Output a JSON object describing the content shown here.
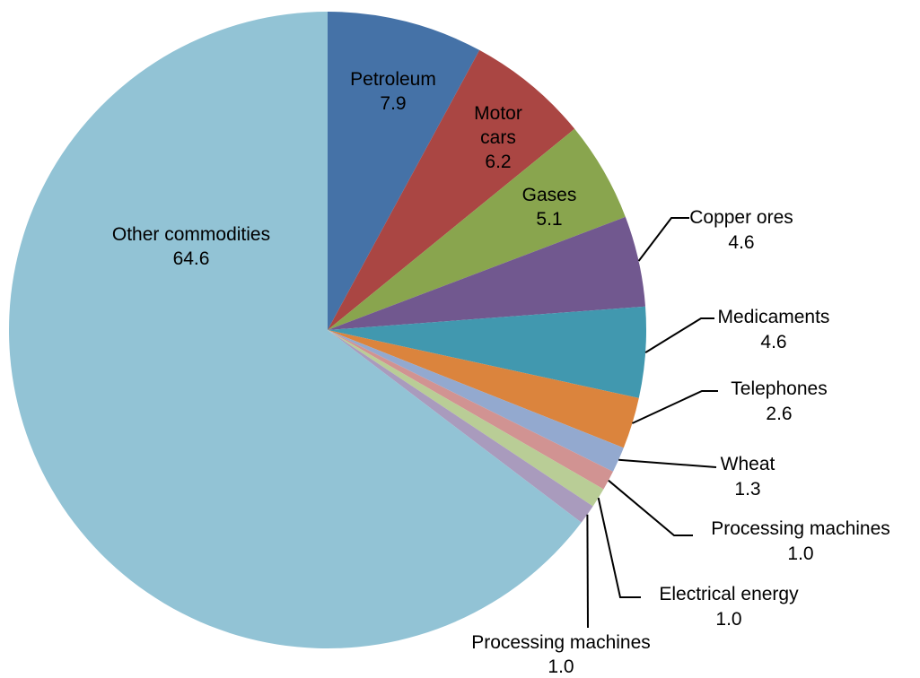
{
  "chart_data": {
    "type": "pie",
    "title": "",
    "start_angle_deg": 0,
    "direction": "clockwise",
    "slices": [
      {
        "label": "Petroleum",
        "value": 7.9,
        "value_label": "7.9",
        "color": "#4572A7"
      },
      {
        "label": "Motor cars",
        "value": 6.2,
        "value_label": "6.2",
        "color": "#AA4643"
      },
      {
        "label": "Gases",
        "value": 5.1,
        "value_label": "5.1",
        "color": "#89A54E"
      },
      {
        "label": "Copper ores",
        "value": 4.6,
        "value_label": "4.6",
        "color": "#71588F"
      },
      {
        "label": "Medicaments",
        "value": 4.6,
        "value_label": "4.6",
        "color": "#4198AF"
      },
      {
        "label": "Telephones",
        "value": 2.6,
        "value_label": "2.6",
        "color": "#DB843D"
      },
      {
        "label": "Wheat",
        "value": 1.3,
        "value_label": "1.3",
        "color": "#93A9CF"
      },
      {
        "label": "Processing machines",
        "value": 1.0,
        "value_label": "1.0",
        "color": "#D19392"
      },
      {
        "label": "Electrical energy",
        "value": 1.0,
        "value_label": "1.0",
        "color": "#B9CD96"
      },
      {
        "label": "Processing machines",
        "value": 1.0,
        "value_label": "1.0",
        "color": "#A99BBD"
      },
      {
        "label": "Other commodities",
        "value": 64.6,
        "value_label": "64.6",
        "color": "#92C3D5"
      }
    ]
  }
}
